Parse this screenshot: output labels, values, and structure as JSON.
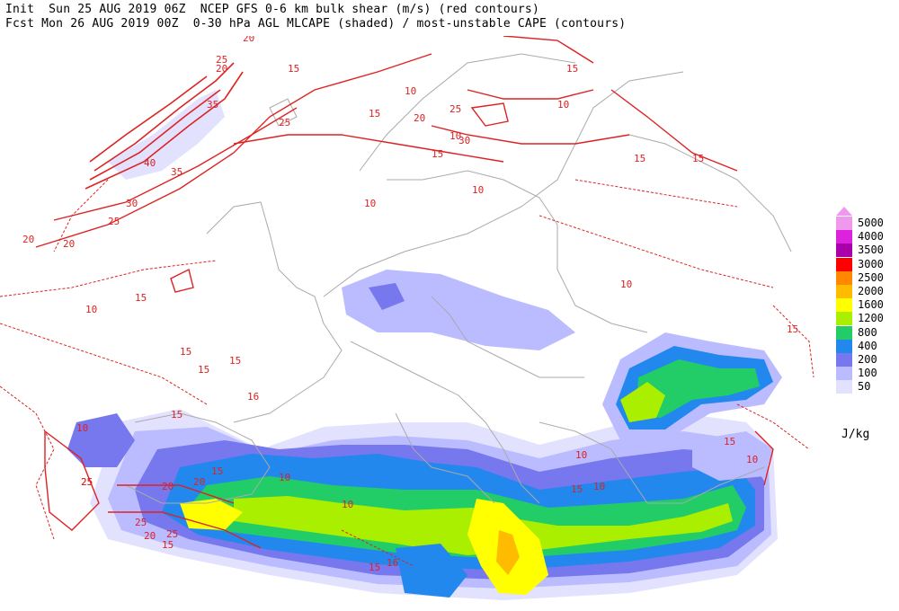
{
  "header": {
    "line1": "Init  Sun 25 AUG 2019 06Z  NCEP GFS 0-6 km bulk shear (m/s) (red contours)",
    "line2": "Fcst Mon 26 AUG 2019 00Z  0-30 hPa AGL MLCAPE (shaded) / most-unstable CAPE (contours)"
  },
  "legend": {
    "units": "J/kg",
    "levels": [
      {
        "label": "5000",
        "color": "#ee99ee"
      },
      {
        "label": "4000",
        "color": "#dd22dd"
      },
      {
        "label": "3500",
        "color": "#aa00aa"
      },
      {
        "label": "3000",
        "color": "#ff0000"
      },
      {
        "label": "2500",
        "color": "#ff8800"
      },
      {
        "label": "2000",
        "color": "#ffbb00"
      },
      {
        "label": "1600",
        "color": "#ffff00"
      },
      {
        "label": "1200",
        "color": "#aaee00"
      },
      {
        "label": "800",
        "color": "#22cc66"
      },
      {
        "label": "400",
        "color": "#2288ee"
      },
      {
        "label": "200",
        "color": "#7777ee"
      },
      {
        "label": "100",
        "color": "#bbbbff"
      },
      {
        "label": "50",
        "color": "#e2e2ff"
      }
    ]
  },
  "map": {
    "contour_color": "#dd2222",
    "border_color": "#aaaaaa",
    "shear_labels": [
      "20",
      "25",
      "20",
      "15",
      "35",
      "40",
      "35",
      "30",
      "25",
      "20",
      "10",
      "15",
      "25",
      "20",
      "10",
      "15",
      "25",
      "30",
      "25",
      "20",
      "15",
      "10",
      "10",
      "10",
      "15",
      "15",
      "10",
      "15",
      "10",
      "15",
      "15",
      "15",
      "15",
      "10",
      "16",
      "25",
      "20",
      "20",
      "25",
      "25",
      "20",
      "15",
      "15",
      "10",
      "10",
      "15",
      "10",
      "15",
      "10",
      "16",
      "15",
      "15",
      "25",
      "20",
      "10"
    ]
  }
}
